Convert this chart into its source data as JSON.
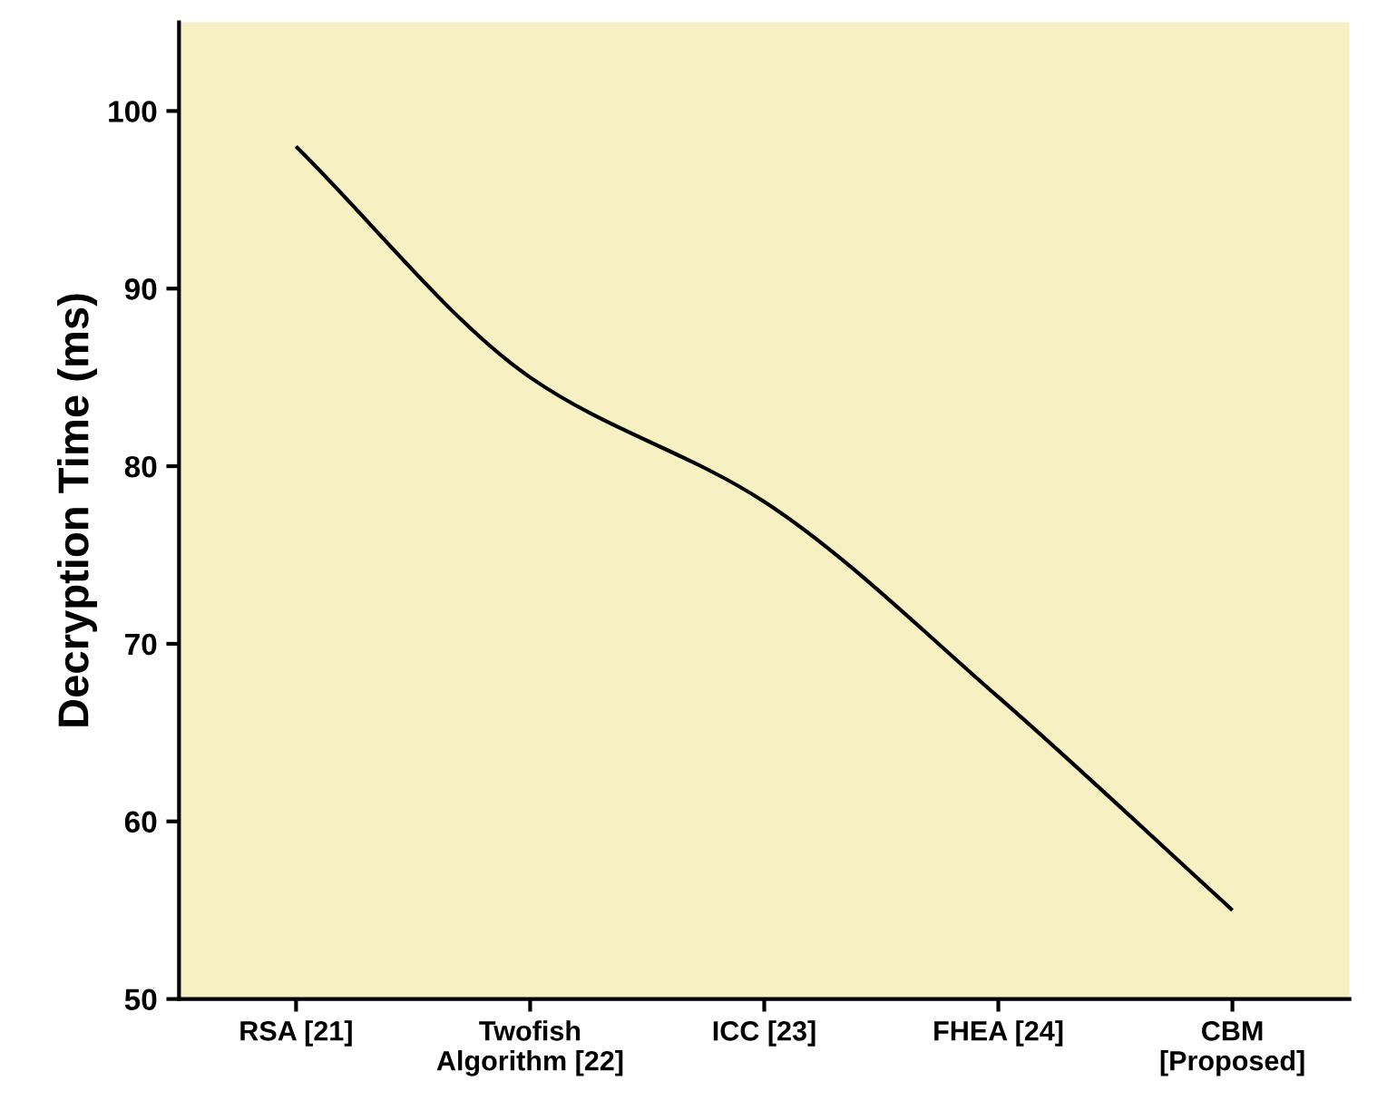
{
  "chart_data": {
    "type": "line",
    "ylabel": "Decryption Time (ms)",
    "categories": [
      "RSA [21]",
      "Twofish\nAlgorithm [22]",
      "ICC [23]",
      "FHEA [24]",
      "CBM\n[Proposed]"
    ],
    "series": [
      {
        "color": "#000000",
        "values": [
          98,
          85,
          78,
          67,
          55
        ]
      }
    ],
    "ylim": [
      50,
      105
    ],
    "yticks": [
      50,
      60,
      70,
      80,
      90,
      100
    ],
    "grid": false,
    "marker": "none",
    "line_style": "solid"
  }
}
